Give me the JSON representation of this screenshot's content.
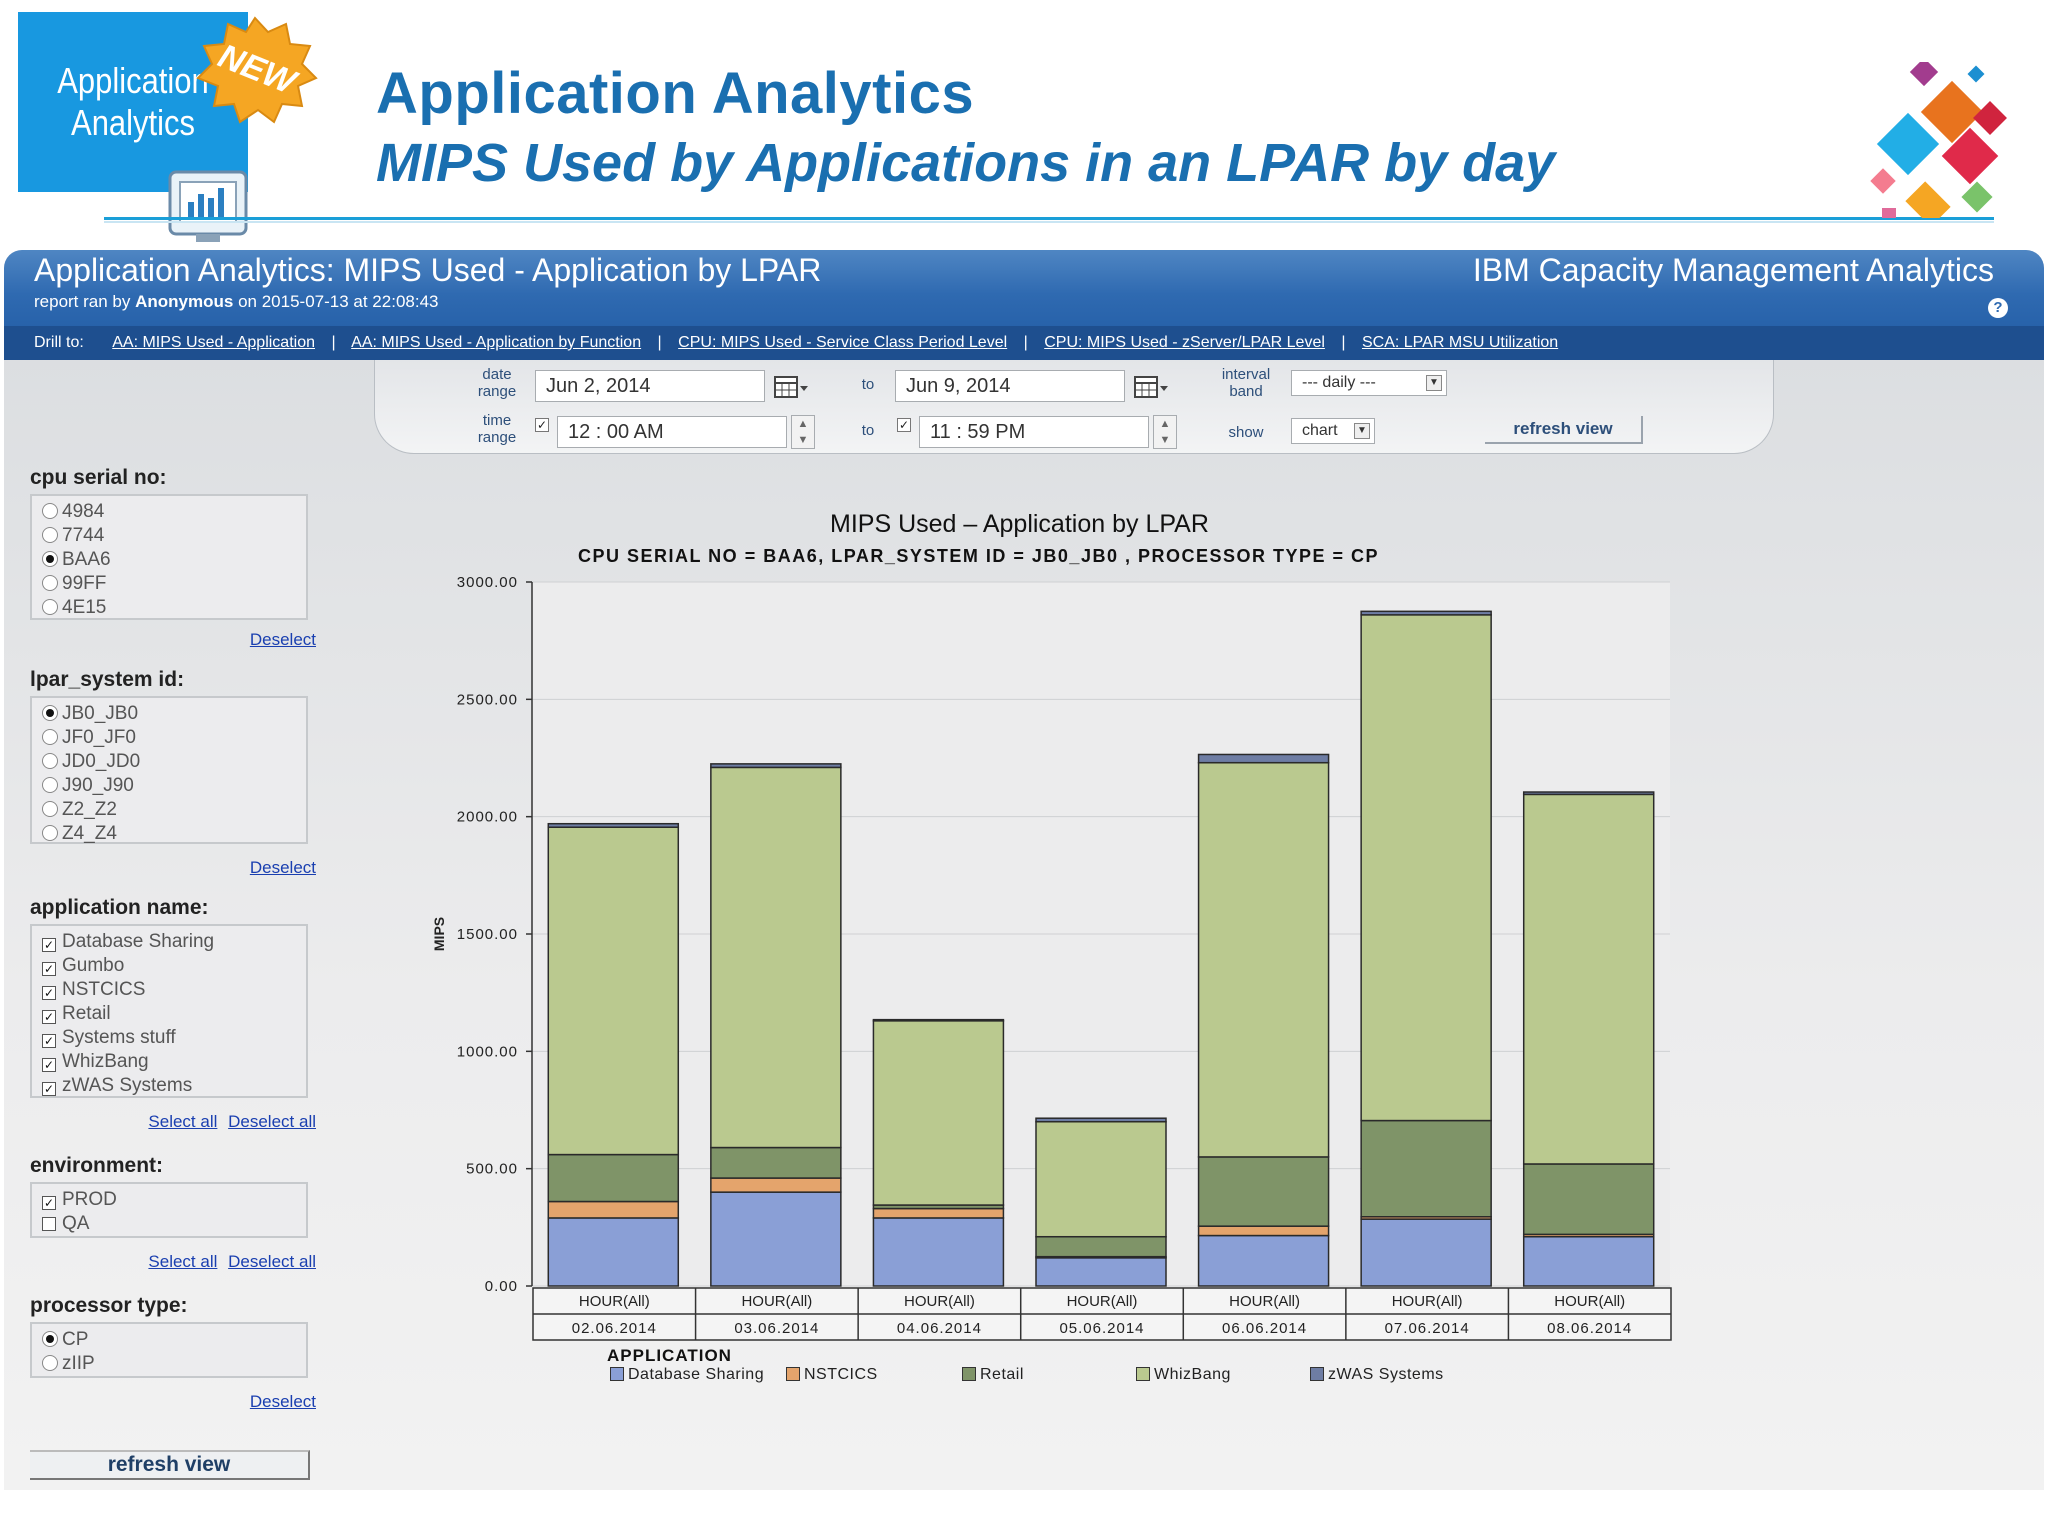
{
  "header": {
    "logo_label_line1": "Application",
    "logo_label_line2": "Analytics",
    "new_badge": "NEW",
    "title": "Application Analytics",
    "subtitle": "MIPS Used by Applications in an LPAR by day"
  },
  "report": {
    "title": "Application Analytics: MIPS Used - Application by LPAR",
    "brand": "IBM Capacity Management Analytics",
    "meta_prefix": "report ran by",
    "meta_user": "Anonymous",
    "meta_suffix": "on 2015-07-13 at 22:08:43",
    "help": "?"
  },
  "drill": {
    "label": "Drill to:",
    "links": [
      "AA: MIPS Used - Application",
      "AA: MIPS Used - Application by Function",
      "CPU: MIPS Used - Service Class Period Level",
      "CPU: MIPS Used - zServer/LPAR Level",
      "SCA: LPAR MSU Utilization"
    ]
  },
  "filters": {
    "date_range_label1": "date",
    "date_range_label2": "range",
    "date_from": "Jun 2, 2014",
    "to_label": "to",
    "date_to": "Jun 9, 2014",
    "interval_label1": "interval",
    "interval_label2": "band",
    "interval_value": "--- daily ---",
    "time_range_label1": "time",
    "time_range_label2": "range",
    "time_from": "12 : 00  AM",
    "time_to": "11 : 59  PM",
    "show_label": "show",
    "show_value": "chart",
    "refresh": "refresh view",
    "checkmark": "✓"
  },
  "panel": {
    "cpu": {
      "heading": "cpu serial no:",
      "items": [
        {
          "label": "4984",
          "selected": false
        },
        {
          "label": "7744",
          "selected": false
        },
        {
          "label": "BAA6",
          "selected": true
        },
        {
          "label": "99FF",
          "selected": false
        },
        {
          "label": "4E15",
          "selected": false
        }
      ],
      "deselect": "Deselect"
    },
    "lpar": {
      "heading": "lpar_system id:",
      "items": [
        {
          "label": "JB0_JB0",
          "selected": true
        },
        {
          "label": "JF0_JF0",
          "selected": false
        },
        {
          "label": "JD0_JD0",
          "selected": false
        },
        {
          "label": "J90_J90",
          "selected": false
        },
        {
          "label": "Z2_Z2",
          "selected": false
        },
        {
          "label": "Z4_Z4",
          "selected": false
        }
      ],
      "deselect": "Deselect"
    },
    "app": {
      "heading": "application name:",
      "items": [
        {
          "label": "Database Sharing",
          "checked": true
        },
        {
          "label": "Gumbo",
          "checked": true
        },
        {
          "label": "NSTCICS",
          "checked": true
        },
        {
          "label": "Retail",
          "checked": true
        },
        {
          "label": "Systems stuff",
          "checked": true
        },
        {
          "label": "WhizBang",
          "checked": true
        },
        {
          "label": "zWAS Systems",
          "checked": true
        }
      ],
      "select_all": "Select all",
      "deselect_all": "Deselect all"
    },
    "env": {
      "heading": "environment:",
      "items": [
        {
          "label": "PROD",
          "checked": true
        },
        {
          "label": "QA",
          "checked": false
        }
      ],
      "select_all": "Select all",
      "deselect_all": "Deselect all"
    },
    "proc": {
      "heading": "processor type:",
      "items": [
        {
          "label": "CP",
          "selected": true
        },
        {
          "label": "zIIP",
          "selected": false
        }
      ],
      "deselect": "Deselect"
    },
    "refresh": "refresh view"
  },
  "chart_data": {
    "type": "bar",
    "stacked": true,
    "title": "MIPS Used – Application by LPAR",
    "subtitle": "CPU SERIAL NO = BAA6, LPAR_SYSTEM ID = JB0_JB0 , PROCESSOR TYPE = CP",
    "ylabel": "MIPS",
    "ylim": [
      0,
      3000
    ],
    "yticks": [
      "0.00",
      "500.00",
      "1000.00",
      "1500.00",
      "2000.00",
      "2500.00",
      "3000.00"
    ],
    "categories": [
      "02.06.2014",
      "03.06.2014",
      "04.06.2014",
      "05.06.2014",
      "06.06.2014",
      "07.06.2014",
      "08.06.2014"
    ],
    "category_group": [
      "HOUR(All)",
      "HOUR(All)",
      "HOUR(All)",
      "HOUR(All)",
      "HOUR(All)",
      "HOUR(All)",
      "HOUR(All)"
    ],
    "legend_title": "APPLICATION",
    "series": [
      {
        "name": "Database Sharing",
        "color": "#8a9fd6",
        "values": [
          290,
          400,
          290,
          120,
          215,
          285,
          210
        ]
      },
      {
        "name": "NSTCICS",
        "color": "#e4a46c",
        "values": [
          70,
          60,
          40,
          5,
          40,
          10,
          10
        ]
      },
      {
        "name": "Retail",
        "color": "#7f9468",
        "values": [
          200,
          130,
          15,
          85,
          295,
          410,
          300
        ]
      },
      {
        "name": "WhizBang",
        "color": "#bac98f",
        "values": [
          1395,
          1620,
          785,
          490,
          1680,
          2155,
          1575
        ]
      },
      {
        "name": "zWAS Systems",
        "color": "#6e7da4",
        "values": [
          15,
          15,
          5,
          15,
          35,
          15,
          10
        ]
      }
    ]
  }
}
